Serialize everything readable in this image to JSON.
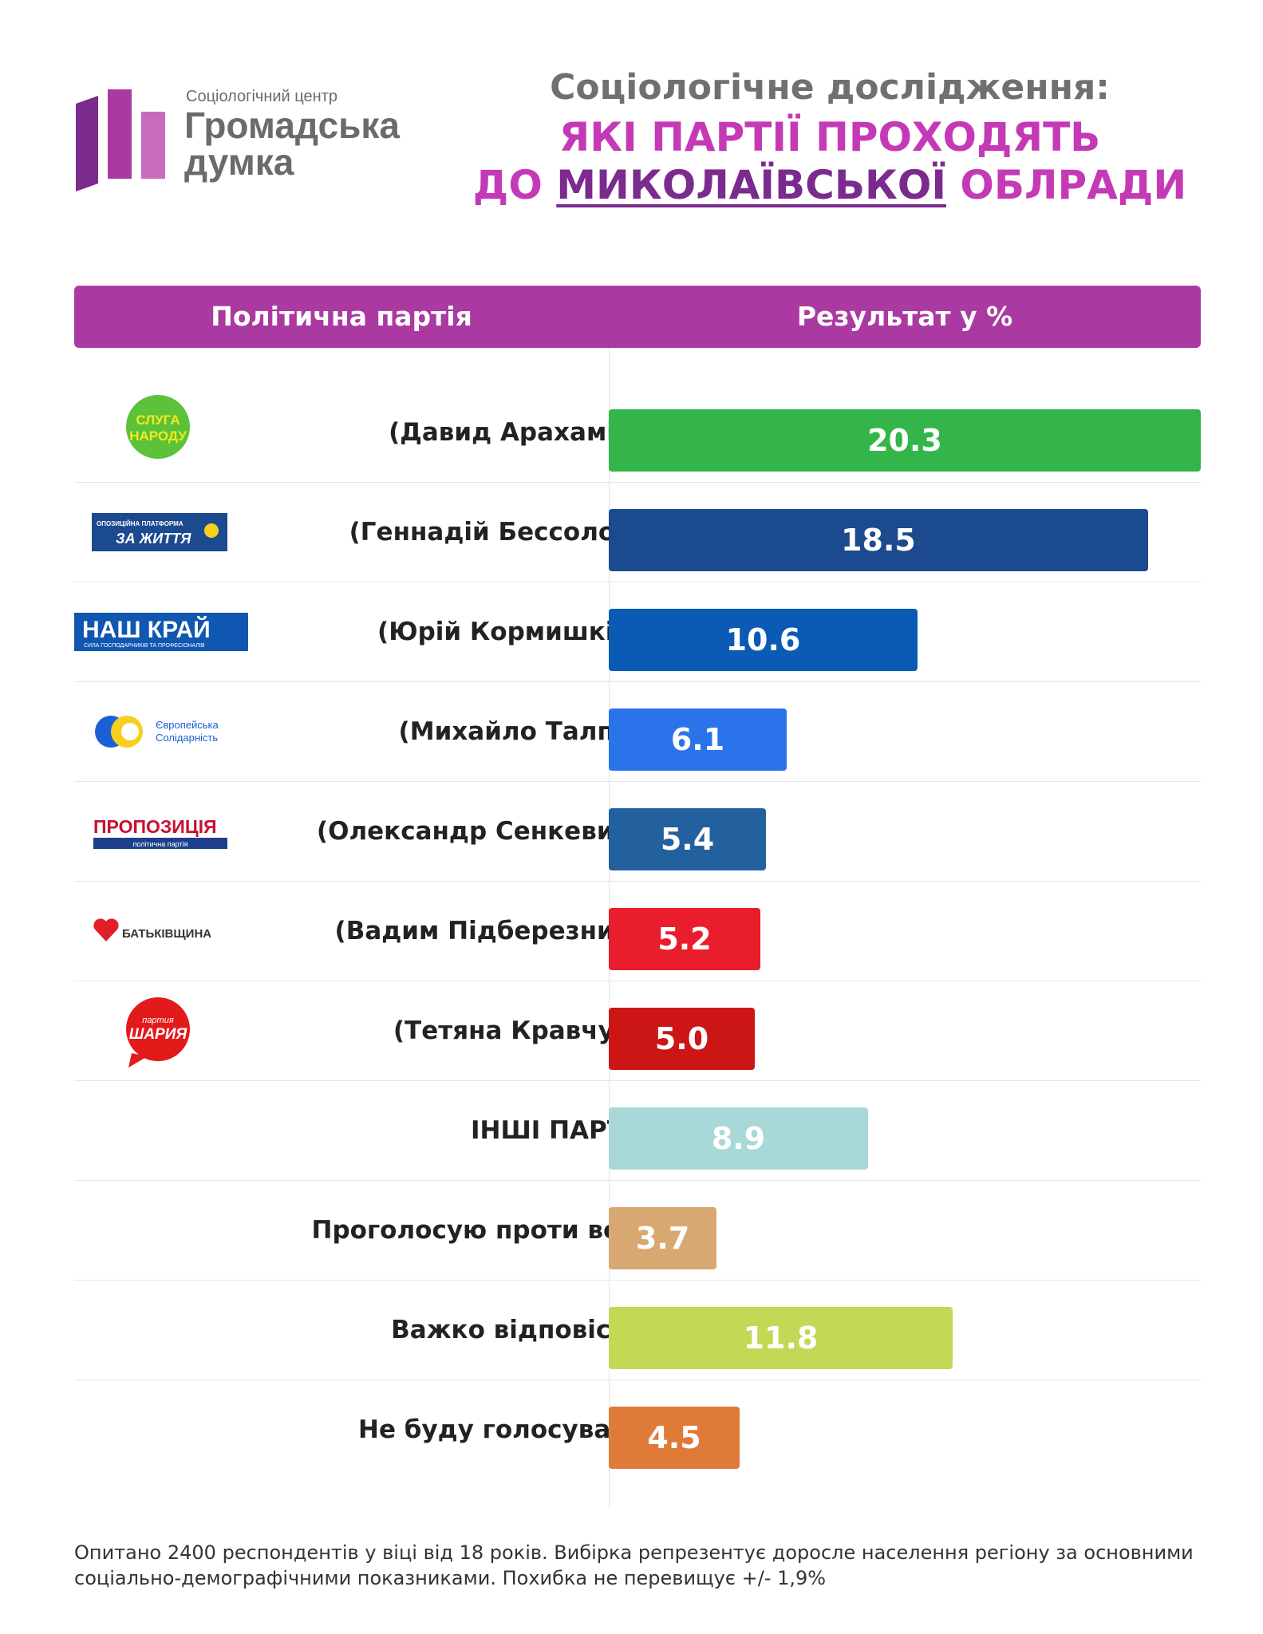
{
  "logo": {
    "small": "Соціологічний центр",
    "big": "Громадська думка"
  },
  "headline": {
    "line1": "Соціологічне дослідження:",
    "line2": "ЯКІ ПАРТІЇ ПРОХОДЯТЬ",
    "line3_pre": "ДО ",
    "line3_highlight": "МИКОЛАЇВСЬКОЇ",
    "line3_post": " ОБЛРАДИ"
  },
  "table_header": {
    "col1": "Політична партія",
    "col2": "Результат у %"
  },
  "chart_data": {
    "type": "bar",
    "orientation": "horizontal",
    "xlim": [
      0,
      20.3
    ],
    "categories": [
      "(Давид Арахамія)",
      "(Геннадій Бессолов)",
      "(Юрій Кормишкін)",
      "(Михайло Талпа)",
      "(Олександр Сенкевич)",
      "(Вадим Підберезник)",
      "(Тетяна Кравчук)",
      "ІНШІ ПАРТІЇ",
      "Проголосую проти всіх",
      "Важко відповісти",
      "Не буду голосувати"
    ],
    "values": [
      20.3,
      18.5,
      10.6,
      6.1,
      5.4,
      5.2,
      5.0,
      8.9,
      3.7,
      11.8,
      4.5
    ],
    "value_labels": [
      "20.3",
      "18.5",
      "10.6",
      "6.1",
      "5.4",
      "5.2",
      "5.0",
      "8.9",
      "3.7",
      "11.8",
      "4.5"
    ],
    "colors": [
      "#33b54a",
      "#1b4a8f",
      "#0b5bb5",
      "#2a73ea",
      "#23609e",
      "#ea1d2c",
      "#cc1616",
      "#a8d8d8",
      "#d8a872",
      "#c5d855",
      "#df7a38"
    ]
  },
  "party_logos": [
    {
      "icon": "sluha-narodu-logo",
      "text": "СЛУГА НАРОДУ"
    },
    {
      "icon": "opzzh-logo",
      "text_small": "ОПОЗИЦІЙНА ПЛАТФОРМА",
      "text": "ЗА ЖИТТЯ"
    },
    {
      "icon": "nash-krai-logo",
      "text": "НАШ КРАЙ",
      "text_small": "СИЛА ГОСПОДАРНИКІВ ТА ПРОФЕСІОНАЛІВ"
    },
    {
      "icon": "yes-logo",
      "text_small": "Європейська Солідарність"
    },
    {
      "icon": "propozytsiia-logo",
      "text": "ПРОПОЗИЦІЯ",
      "text_small": "політична партія"
    },
    {
      "icon": "batkivshchyna-logo",
      "text": "БАТЬКІВЩИНА"
    },
    {
      "icon": "shariia-logo",
      "text_small": "партия",
      "text": "ШАРИЯ"
    }
  ],
  "footnote": "Опитано 2400 респондентів у віці від 18 років. Вибірка репрезентує доросле населення регіону за основними соціально-демографічними показниками. Похибка не перевищує +/- 1,9%"
}
